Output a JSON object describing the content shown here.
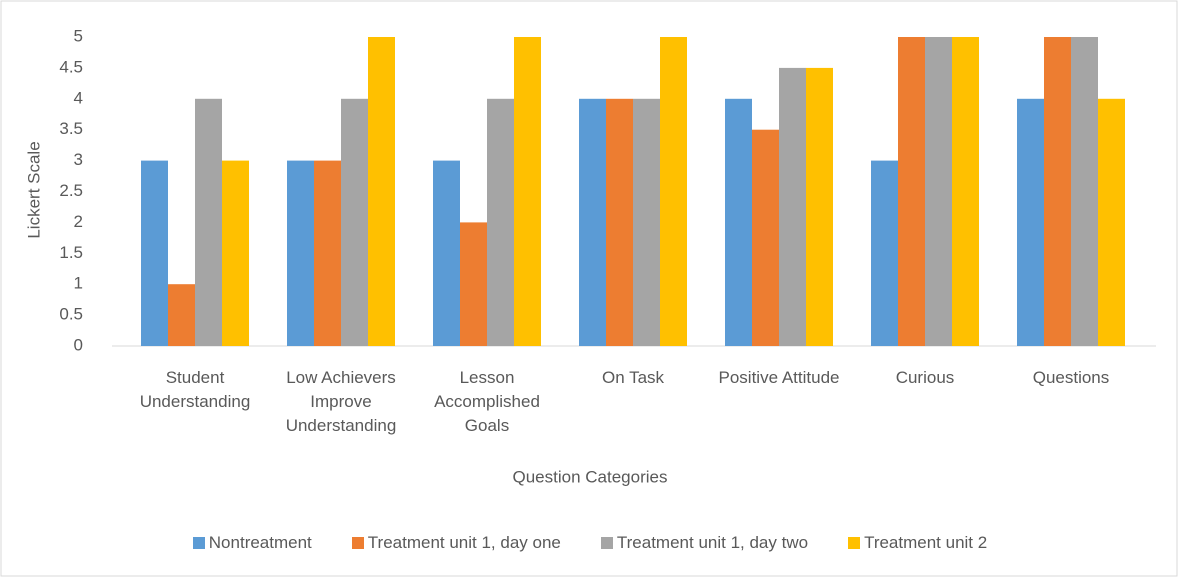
{
  "chart_data": {
    "type": "bar",
    "x_label": "Question Categories",
    "y_label": "Lickert Scale",
    "categories": [
      "Student Understanding",
      "Low Achievers Improve Understanding",
      "Lesson Accomplished Goals",
      "On Task",
      "Positive Attitude",
      "Curious",
      "Questions"
    ],
    "series": [
      {
        "name": "Nontreatment",
        "color": "#5b9bd5",
        "values": [
          3,
          3,
          3,
          4,
          4,
          3,
          4
        ]
      },
      {
        "name": "Treatment unit 1, day one",
        "color": "#ed7d31",
        "values": [
          1,
          3,
          2,
          4,
          3.5,
          5,
          5
        ]
      },
      {
        "name": "Treatment unit 1, day two",
        "color": "#a5a5a5",
        "values": [
          4,
          4,
          4,
          4,
          4.5,
          5,
          5
        ]
      },
      {
        "name": "Treatment unit 2",
        "color": "#ffc000",
        "values": [
          3,
          5,
          5,
          5,
          4.5,
          5,
          4
        ]
      }
    ],
    "ylim": [
      0,
      5
    ],
    "yticks": [
      0,
      0.5,
      1,
      1.5,
      2,
      2.5,
      3,
      3.5,
      4,
      4.5,
      5
    ],
    "grid": false,
    "legend": "bottom"
  }
}
